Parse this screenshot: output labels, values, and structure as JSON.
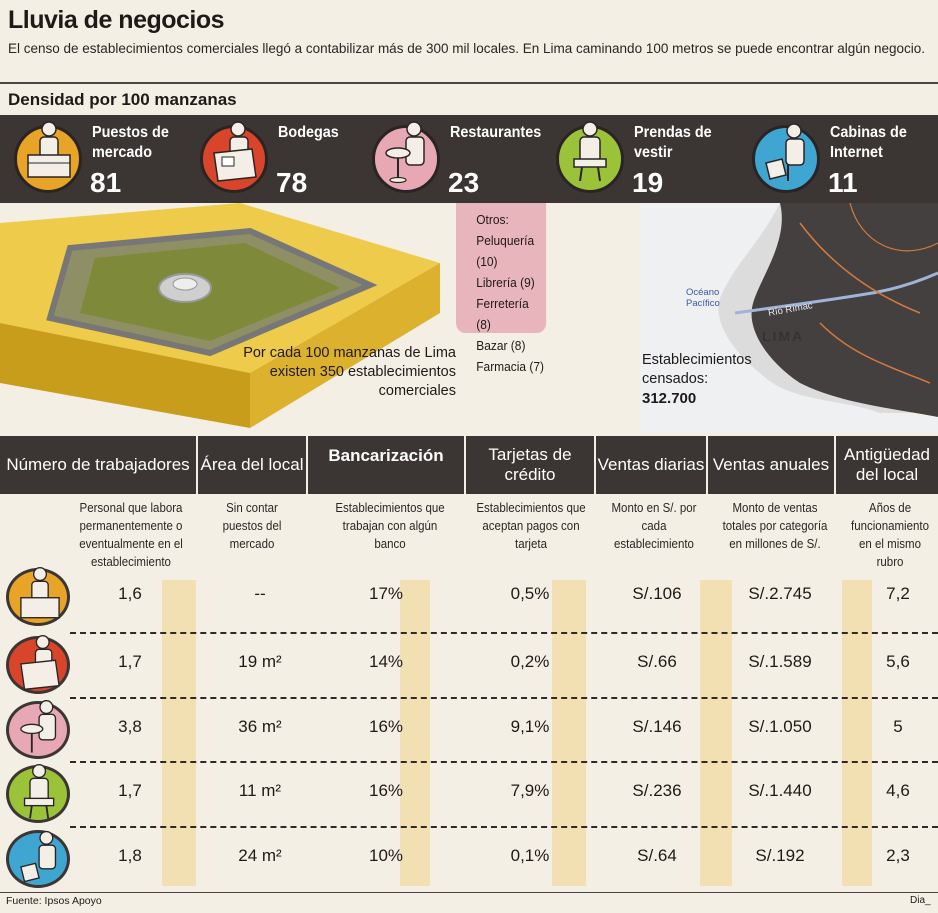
{
  "header": {
    "title": "Lluvia de negocios",
    "intro": "El censo de establecimientos comerciales llegó a contabilizar más de 300 mil locales. En Lima caminando 100 metros se puede encontrar algún negocio.",
    "subtitle": "Densidad por 100 manzanas"
  },
  "categories": [
    {
      "label": "Puestos de mercado",
      "value": "81",
      "color": "#e8a427",
      "icon": "market-stall-vendor-icon"
    },
    {
      "label": "Bodegas",
      "value": "78",
      "color": "#d9452a",
      "icon": "bodega-shopkeeper-icon"
    },
    {
      "label": "Restaurantes",
      "value": "23",
      "color": "#e7a8b4",
      "icon": "restaurant-waiter-icon"
    },
    {
      "label": "Prendas de vestir",
      "value": "19",
      "color": "#9bc33a",
      "icon": "clothing-tailor-icon"
    },
    {
      "label": "Cabinas de Internet",
      "value": "11",
      "color": "#3fa6d2",
      "icon": "internet-cafe-computer-icon"
    }
  ],
  "otros": {
    "title": "Otros:",
    "items": [
      "Peluquería (10)",
      "Librería (9)",
      "Ferretería (8)",
      "Bazar (8)",
      "Farmacia (7)"
    ]
  },
  "por_cada": "Por cada 100 manzanas de Lima existen 350 establecimientos comerciales",
  "censo": {
    "label": "Establecimientos censados:",
    "value": "312.700"
  },
  "map": {
    "ocean": "Océano Pacífico",
    "river": "Río Rímac",
    "city": "LIMA"
  },
  "table": {
    "columns": [
      {
        "title": "Número de trabajadores",
        "desc": "Personal que labora permanentemente o eventualmente en el establecimiento"
      },
      {
        "title": "Área del local",
        "desc": "Sin contar puestos del mercado"
      },
      {
        "title": "Bancarización",
        "desc": "Establecimientos que trabajan con algún banco"
      },
      {
        "title": "Tarjetas de crédito",
        "desc": "Establecimientos que aceptan pagos con tarjeta"
      },
      {
        "title": "Ventas diarias",
        "desc": "Monto en S/. por cada establecimiento"
      },
      {
        "title": "Ventas anuales",
        "desc": "Monto de ventas totales por categoría en millones de S/."
      },
      {
        "title": "Antigüedad del local",
        "desc": "Años de funcionamiento en el mismo rubro"
      }
    ],
    "rows": [
      {
        "category": "Puestos de mercado",
        "values": [
          "1,6",
          "--",
          "17%",
          "0,5%",
          "S/.106",
          "S/.2.745",
          "7,2"
        ]
      },
      {
        "category": "Bodegas",
        "values": [
          "1,7",
          "19 m²",
          "14%",
          "0,2%",
          "S/.66",
          "S/.1.589",
          "5,6"
        ]
      },
      {
        "category": "Restaurantes",
        "values": [
          "3,8",
          "36 m²",
          "16%",
          "9,1%",
          "S/.146",
          "S/.1.050",
          "5"
        ]
      },
      {
        "category": "Prendas de vestir",
        "values": [
          "1,7",
          "11 m²",
          "16%",
          "7,9%",
          "S/.236",
          "S/.1.440",
          "4,6"
        ]
      },
      {
        "category": "Cabinas de Internet",
        "values": [
          "1,8",
          "24 m²",
          "10%",
          "0,1%",
          "S/.64",
          "S/.192",
          "2,3"
        ]
      }
    ]
  },
  "footer": {
    "source": "Fuente: Ipsos Apoyo",
    "signature": "Dia_"
  }
}
